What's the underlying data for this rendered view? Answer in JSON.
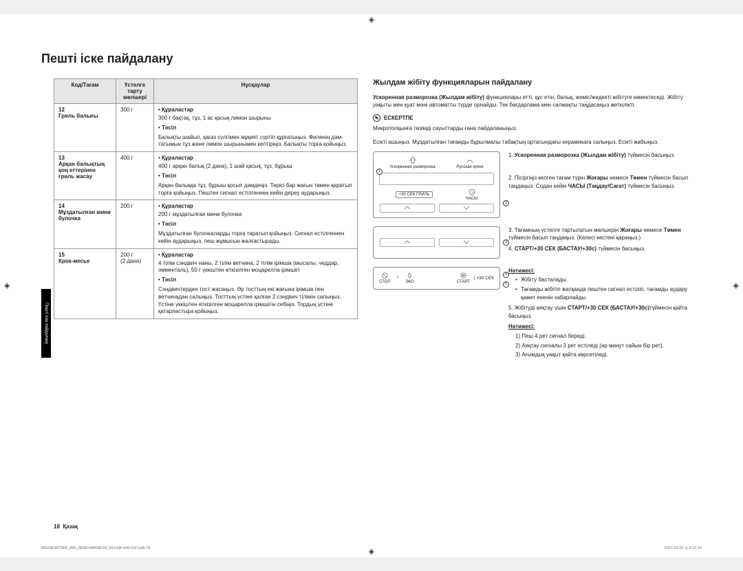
{
  "markers": {
    "glyph": "◈"
  },
  "page_title": "Пешті іске пайдалану",
  "side_tab": "Пешті іске пайдалану",
  "table": {
    "headers": {
      "code": "Код/Тағам",
      "weight": "Үстелге тарту мөлшері",
      "instr": "Нұсқаулар"
    },
    "label_ingredients": "• Құраластар",
    "label_method": "• Тәсіл",
    "rows": [
      {
        "code_num": "12",
        "code_name": "Гриль балығы",
        "weight": "300 г",
        "ingredients": "300 г бақтақ, тұз, 1 ас қасық лимон шырыны",
        "method": "Балықты шайып, қағаз сүлгімен мұқият сүртіп құрғатыңыз. Филенің дәм-татымын тұз және лимон шырынымен келтіріңіз. Балықты торға қойыңыз."
      },
      {
        "code_num": "13",
        "code_name": "Арқан балықтың қоң еттерінен гриль жасау",
        "weight": "400 г",
        "ingredients": "400 г арқан балық (2 дана), 1 шай қасық, тұз, бұрыш",
        "method": "Арқан балыққа тұз, бұрыш қосып дәмдеңіз. Терісі бар жағын төмен қаратып торға қойыңыз. Пештен сигнал естілгеннен кейін дереу аударыңыз."
      },
      {
        "code_num": "14",
        "code_name": "Мұздатылған мини булочка",
        "weight": "200 г",
        "ingredients": "200 г мұздатылған мини булочка",
        "method": "Мұздатылған булочкаларды торға таратып қойыңыз. Сигнал естілгеннен кейін аударыңыз, пеш жұмысын жалғастырады."
      },
      {
        "code_num": "15",
        "code_name": "Крок-месье",
        "weight": "200 г",
        "weight_note": "(2 дана)",
        "ingredients": "4 тілім сэндвич наны, 2 тілім ветчина, 2 тілім ірімшік (мысалы, чеддар, эмменталь), 50 г үккіштен өткізілген моцарелла ірімшігі",
        "method": "Сэндвичтерден тост жасаңыз. Әр тосттың екі жағына ірімшік пен ветчинадан салыңыз. Тосттың үстіне қалған 2 сэндвич тілімін салыңыз. Үстіне үккіштен өткізілген моцарелла ірімшігін себіңіз. Тордың үстіне қатарластыра қойыңыз."
      }
    ]
  },
  "right": {
    "heading": "Жылдам жібіту функцияларын пайдалану",
    "intro_bold": "Ускоренная разморозка (Жылдам жібіту)",
    "intro_rest": " функциялары етті, құс етін, балық, жеміс/жидекті жібітуге көмектеседі. Жібіту уақыты мен қуат мәні автоматты түрде орнайды. Тек бағдарлама мен салмақты таңдасаңыз жеткілікті.",
    "note_label": "ЕСКЕРТПЕ",
    "note_line": "Микротолқынға төзімді сауыттарды ғана пайдаланыңыз.",
    "open_door": "Есікті ашыңыз. Мұздатылған тағамды бұрылмалы табақтың ортасындағы керамикаға салыңыз. Есікті жабыңыз.",
    "panel_labels": {
      "defrost": "Ускоренная разморозка",
      "russian": "Русская кухня",
      "grill": "+30 СЕК ГРИЛЬ",
      "clock": "ЧАСЫ",
      "stop": "СТОП",
      "eco": "ЭКО",
      "start": "СТАРТ",
      "plus30": "+30 СЕК"
    },
    "steps": {
      "s1_bold": "Ускоренная разморозка (Жылдам жібіту)",
      "s1_text_a": "1. ",
      "s1_text_b": " түймесін басыңыз.",
      "s2_a": "2. Пісіргіңіз келген тағам түрін ",
      "s2_up": "Жоғары",
      "s2_b": " немесе ",
      "s2_down": "Төмен",
      "s2_c": " түймесін басып таңдаңыз. Содан кейін ",
      "s2_clock": "ЧАСЫ (Таңдау/Сағат)",
      "s2_d": " түймесін басыңыз.",
      "s3_a": "3. Тағамның үстелге тартылатын мөлшерін ",
      "s3_up": "Жоғары",
      "s3_b": " немесе ",
      "s3_down": "Төмен",
      "s3_c": " түймесін басып таңдаңыз. (Келесі кестені қараңыз.)",
      "s4_a": "4. ",
      "s4_bold": "СТАРТ/+30 СЕК (БАСТАУ/+30c)",
      "s4_b": " түймесін басыңыз.",
      "s4_result_label": "Нәтижесі:",
      "s4_bullets": [
        "Жібіту басталады.",
        "Тағамды жібітіп жатқанда пештен сигнал естіліп, тағамды аудару қажет екенін хабарлайды."
      ],
      "s5_a": "5. Жібітуді аяқтау үшін ",
      "s5_bold": "СТАРТ/+30 СЕК (БАСТАУ/+30c)",
      "s5_b": "түймесін қайта басыңыз.",
      "s5_result_label": "Нәтижесі:",
      "s5_list": [
        "1)  Пеш 4 рет сигнал береді.",
        "2)  Аяқтау сигналы 3 рет естіледі (әр минут сайын бір рет).",
        "3)  Ағымдық уақыт қайта көрсетіледі."
      ]
    }
  },
  "footer": {
    "page": "18",
    "lang": "Қазақ"
  },
  "meta": {
    "file": "MG23K3573AS_BW_DE68-04403R-02_RU+UK+KK+UZ.indb   18",
    "time": "2017-02-01   ◎ 2:12:14"
  }
}
